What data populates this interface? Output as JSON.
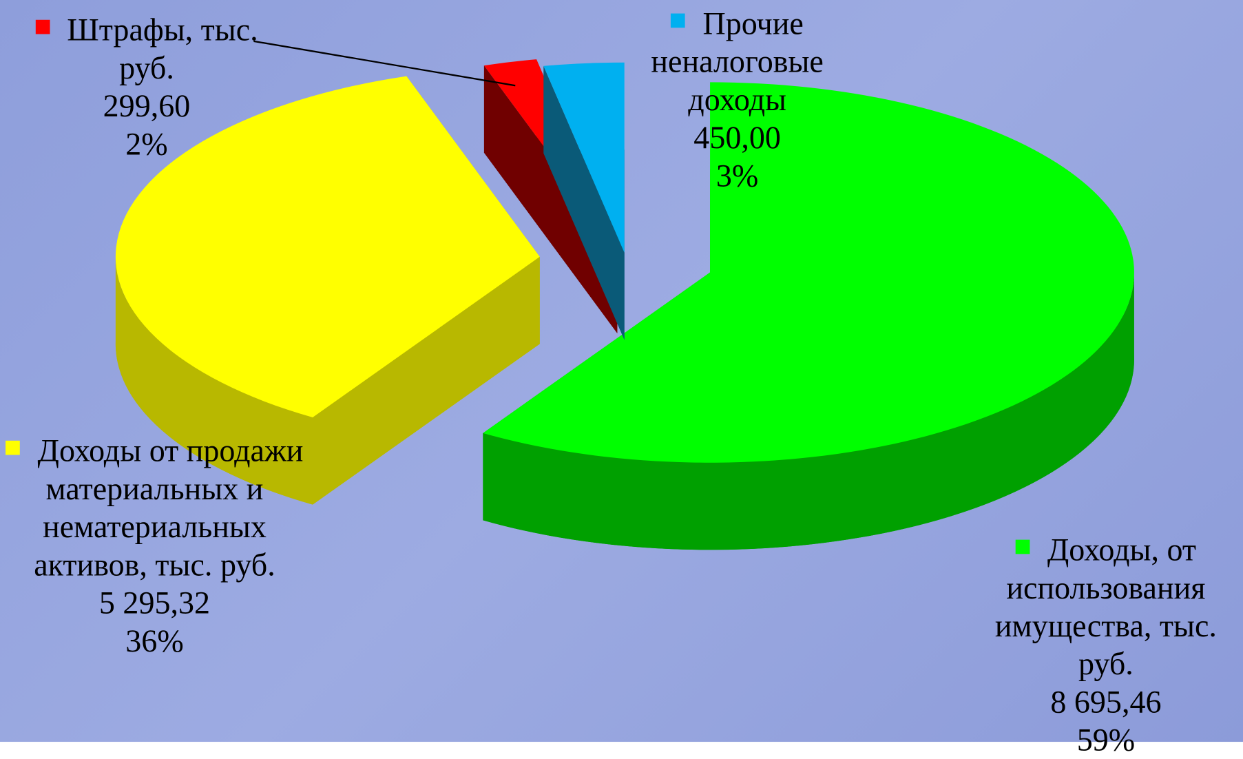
{
  "chart_data": {
    "type": "pie3d",
    "categories": [
      "Доходы, от использования имущества, тыс. руб.",
      "Доходы от продажи материальных и нематериальных активов, тыс. руб.",
      "Штрафы, тыс. руб.",
      "Прочие неналоговые доходы"
    ],
    "values": [
      8695.46,
      5295.32,
      299.6,
      450
    ],
    "value_labels": [
      "8 695,46",
      "5 295,32",
      "299,60",
      "450,00"
    ],
    "percent_labels": [
      "59%",
      "36%",
      "2%",
      "3%"
    ],
    "colors": [
      "#00ff00",
      "#ffff00",
      "#ff0000",
      "#00b0f0"
    ],
    "side_colors": [
      "#00a000",
      "#b8b800",
      "#700000",
      "#0a5a78"
    ]
  }
}
